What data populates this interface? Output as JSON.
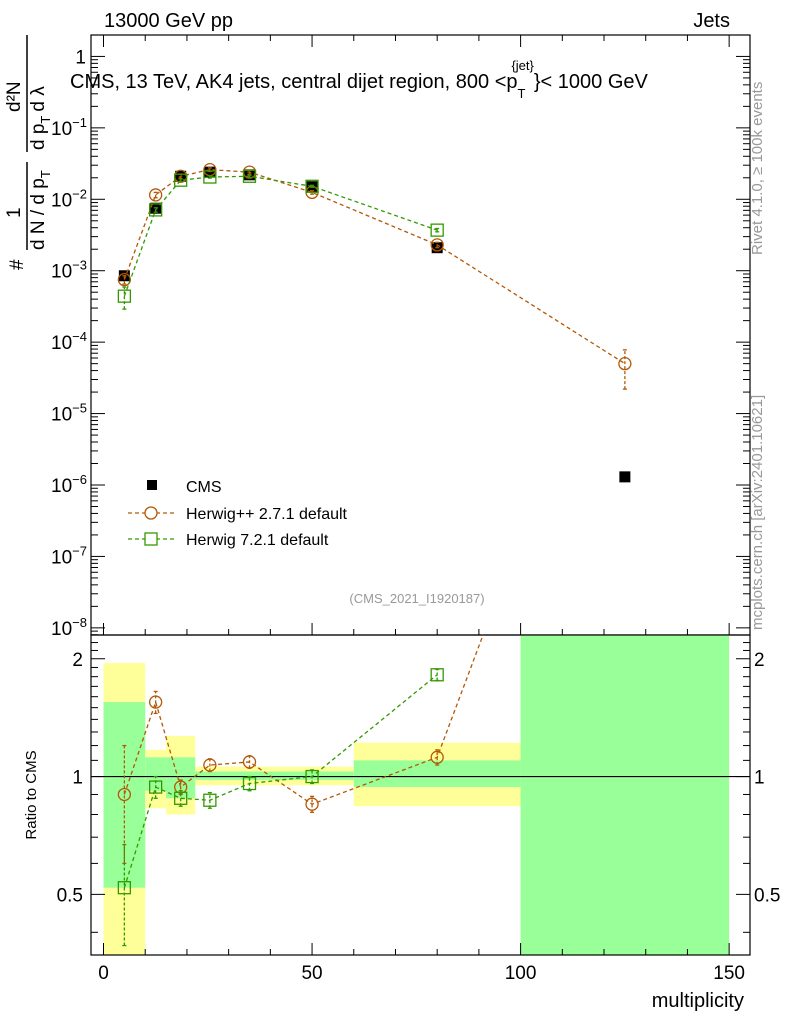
{
  "header": {
    "left": "13000 GeV pp",
    "right": "Jets"
  },
  "chart_data": {
    "type": "scatter",
    "title": "CMS, 13 TeV, AK4 jets, central dijet region, 800 <p_T^{jet}> < 1000 GeV",
    "title_parts": {
      "prefix": "CMS, 13 TeV, AK4 jets, central dijet region, 800 <p",
      "sub": "T",
      "sup": "{jet}",
      "suffix": "}< 1000 GeV"
    },
    "ylabel_main": "1/N dN/dλ (per p_T)",
    "ylabel_glyphs": {
      "one": "1",
      "hash1": "#",
      "hash2": "#",
      "num_dN": "d²N",
      "den1": "d N / d p",
      "den1_sub": "T",
      "den2": "d p",
      "den2_sub": "T",
      "den2_tail": "d λ"
    },
    "ylabel_ratio": "Ratio to CMS",
    "xlabel": "multiplicity",
    "xlim": [
      -3,
      155
    ],
    "ylim_main_log10": [
      -8.1,
      0.3
    ],
    "ylim_ratio": [
      0.35,
      2.3
    ],
    "x_ticks": [
      "0",
      "50",
      "100",
      "150"
    ],
    "y_ticks_main": [
      {
        "exp": 0,
        "b": "1",
        "e": ""
      },
      {
        "exp": -1,
        "b": "10",
        "e": "−1"
      },
      {
        "exp": -2,
        "b": "10",
        "e": "−2"
      },
      {
        "exp": -3,
        "b": "10",
        "e": "−3"
      },
      {
        "exp": -4,
        "b": "10",
        "e": "−4"
      },
      {
        "exp": -5,
        "b": "10",
        "e": "−5"
      },
      {
        "exp": -6,
        "b": "10",
        "e": "−6"
      },
      {
        "exp": -7,
        "b": "10",
        "e": "−7"
      },
      {
        "exp": -8,
        "b": "10",
        "e": "−8"
      }
    ],
    "y_ticks_ratio": [
      {
        "v": 0.5,
        "label": "0.5"
      },
      {
        "v": 1,
        "label": "1"
      },
      {
        "v": 2,
        "label": "2"
      }
    ],
    "series": [
      {
        "name": "CMS",
        "marker": "filled-square",
        "color": "#000000",
        "x": [
          5,
          12.5,
          18.5,
          25.5,
          35,
          50,
          80,
          125
        ],
        "y": [
          0.00085,
          0.0075,
          0.021,
          0.024,
          0.022,
          0.015,
          0.0021,
          1.3e-06
        ]
      },
      {
        "name": "Herwig++ 2.7.1 default",
        "marker": "open-circle",
        "line": "dashed",
        "color": "#b35806",
        "x": [
          5,
          12.5,
          18.5,
          25.5,
          35,
          50,
          80,
          125
        ],
        "y": [
          0.00075,
          0.0115,
          0.021,
          0.026,
          0.024,
          0.0125,
          0.0023,
          5e-05
        ],
        "y_lo": [
          0.00065,
          0.0105,
          0.0195,
          0.0245,
          0.0225,
          0.0118,
          0.0021,
          2.2e-05
        ],
        "y_hi": [
          0.00085,
          0.0125,
          0.0225,
          0.0275,
          0.0255,
          0.0132,
          0.0025,
          7.8e-05
        ],
        "ratio": [
          0.9,
          1.55,
          0.94,
          1.07,
          1.09,
          0.85,
          1.12,
          null
        ],
        "ratio_lo": [
          0.6,
          1.45,
          0.9,
          1.03,
          1.05,
          0.81,
          1.07,
          null
        ],
        "ratio_hi": [
          1.2,
          1.65,
          0.98,
          1.11,
          1.13,
          0.89,
          1.17,
          null
        ]
      },
      {
        "name": "Herwig 7.2.1 default",
        "marker": "open-square",
        "line": "dashed",
        "color": "#339900",
        "x": [
          5,
          12.5,
          18.5,
          25.5,
          35,
          50,
          80
        ],
        "y": [
          0.00044,
          0.0071,
          0.0185,
          0.0205,
          0.021,
          0.0152,
          0.0037
        ],
        "y_lo": [
          0.00029,
          0.0066,
          0.0178,
          0.0198,
          0.0203,
          0.0147,
          0.0035
        ],
        "y_hi": [
          0.00059,
          0.0076,
          0.0192,
          0.0212,
          0.0217,
          0.0157,
          0.0039
        ],
        "ratio": [
          0.52,
          0.94,
          0.88,
          0.87,
          0.96,
          1.0,
          1.82
        ],
        "ratio_lo": [
          0.37,
          0.88,
          0.84,
          0.83,
          0.92,
          0.96,
          1.76
        ],
        "ratio_hi": [
          0.67,
          1.0,
          0.92,
          0.91,
          1.0,
          1.04,
          1.88
        ]
      }
    ],
    "uncertainty_bands": [
      {
        "x0": 0,
        "x1": 10,
        "inner": [
          0.52,
          1.55
        ],
        "outer": [
          0.35,
          1.95
        ]
      },
      {
        "x0": 10,
        "x1": 15,
        "inner": [
          0.92,
          1.12
        ],
        "outer": [
          0.83,
          1.17
        ]
      },
      {
        "x0": 15,
        "x1": 22,
        "inner": [
          0.88,
          1.12
        ],
        "outer": [
          0.8,
          1.27
        ]
      },
      {
        "x0": 22,
        "x1": 60,
        "inner": [
          0.98,
          1.03
        ],
        "outer": [
          0.95,
          1.06
        ]
      },
      {
        "x0": 60,
        "x1": 100,
        "inner": [
          0.94,
          1.1
        ],
        "outer": [
          0.84,
          1.22
        ]
      },
      {
        "x0": 100,
        "x1": 150,
        "inner": [
          0.35,
          2.3
        ],
        "outer": [
          0.35,
          2.3
        ]
      }
    ],
    "herwigpp_ratio_exit": {
      "x": 91,
      "y": 2.3
    },
    "analysis_id": "(CMS_2021_I1920187)",
    "side_text_top": "Rivet 4.1.0, ≥ 100k events",
    "side_text_bottom": "mcplots.cern.ch [arXiv:2401.10621]",
    "colors": {
      "band_inner": "#99ff99",
      "band_outer": "#ffff99",
      "herwigpp": "#b35806",
      "herwig7": "#339900",
      "analysis_id": "#999999"
    }
  }
}
